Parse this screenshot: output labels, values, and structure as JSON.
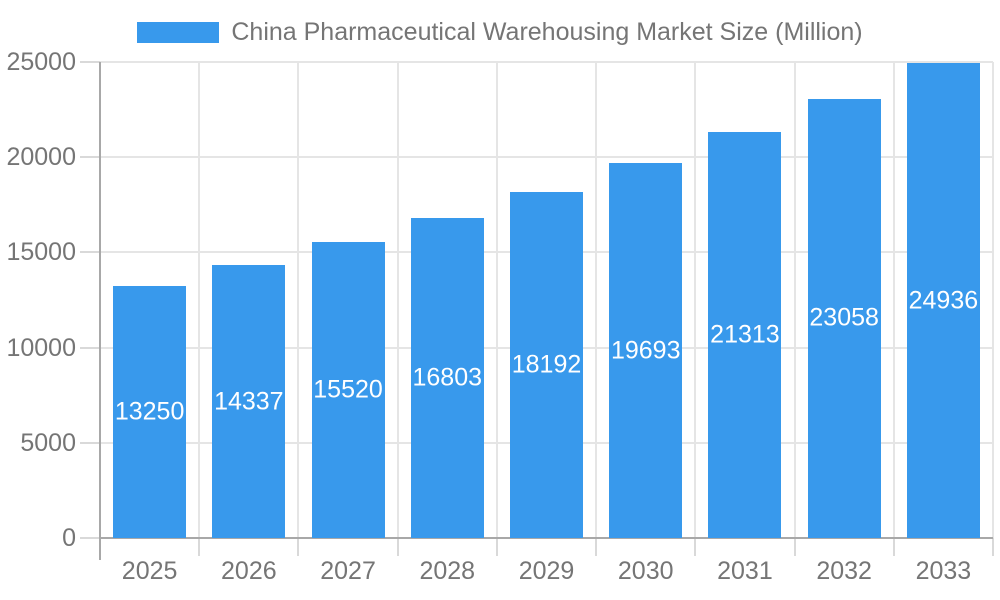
{
  "legend": {
    "label": "China Pharmaceutical Warehousing Market Size (Million)"
  },
  "colors": {
    "bar": "#3899EC",
    "grid": "#E5E5E5",
    "axis": "#A8A8A8",
    "tick": "#D9D9D9",
    "text": "#757575",
    "value_label": "#FFFFFF",
    "background": "#FFFFFF"
  },
  "chart_data": {
    "type": "bar",
    "title": "China Pharmaceutical Warehousing Market Size (Million)",
    "categories": [
      "2025",
      "2026",
      "2027",
      "2028",
      "2029",
      "2030",
      "2031",
      "2032",
      "2033"
    ],
    "values": [
      13250,
      14337,
      15520,
      16803,
      18192,
      19693,
      21313,
      23058,
      24936
    ],
    "xlabel": "",
    "ylabel": "",
    "ylim": [
      0,
      25000
    ],
    "yticks": [
      0,
      5000,
      10000,
      15000,
      20000,
      25000
    ],
    "grid": true,
    "legend_position": "top-center",
    "value_labels": "inside-center-white"
  }
}
